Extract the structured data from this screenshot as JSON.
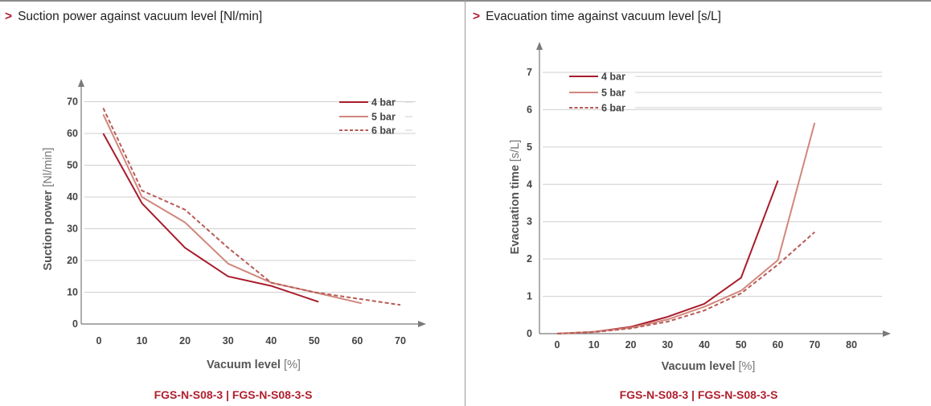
{
  "colors": {
    "series_4bar": "#a81c2c",
    "series_5bar": "#d1877d",
    "series_6bar": "#b85a55",
    "accent": "#b01f2e",
    "grid": "#cfcfcf",
    "axis": "#7a7a7a"
  },
  "chart_data": [
    {
      "type": "line",
      "arrow": ">",
      "title": "Suction power against vacuum level [Nl/min]",
      "xlabel": "Vacuum level",
      "xlabel_unit": "[%]",
      "ylabel": "Suction power",
      "ylabel_unit": "[Nl/min]",
      "x_ticks": [
        0,
        10,
        20,
        30,
        40,
        50,
        60,
        70
      ],
      "y_ticks": [
        0,
        10,
        20,
        30,
        40,
        50,
        60,
        70
      ],
      "xlim": [
        0,
        70
      ],
      "ylim": [
        0,
        70
      ],
      "grid": true,
      "legend_position": "top-right",
      "model": "FGS-N-S08-3 | FGS-N-S08-3-S",
      "series": [
        {
          "name": "4 bar",
          "style": "solid",
          "x": [
            1,
            10,
            20,
            30,
            40,
            51
          ],
          "y": [
            60,
            38,
            24,
            15,
            12,
            7
          ]
        },
        {
          "name": "5 bar",
          "style": "solid",
          "x": [
            1,
            10,
            20,
            30,
            40,
            50,
            61
          ],
          "y": [
            66,
            40,
            32,
            19,
            13,
            10,
            6.5
          ]
        },
        {
          "name": "6 bar",
          "style": "dashed",
          "x": [
            1,
            10,
            20,
            30,
            40,
            50,
            70
          ],
          "y": [
            68,
            42,
            36,
            24,
            13,
            10,
            6
          ]
        }
      ]
    },
    {
      "type": "line",
      "arrow": ">",
      "title": "Evacuation time against vacuum level [s/L]",
      "xlabel": "Vacuum level",
      "xlabel_unit": "[%]",
      "ylabel": "Evacuation time",
      "ylabel_unit": "[s/L]",
      "x_ticks": [
        0,
        10,
        20,
        30,
        40,
        50,
        60,
        70,
        80
      ],
      "y_ticks": [
        0,
        1,
        2,
        3,
        4,
        5,
        6,
        7
      ],
      "xlim": [
        0,
        80
      ],
      "ylim": [
        0,
        7
      ],
      "grid": true,
      "legend_position": "top-left",
      "model": "FGS-N-S08-3 | FGS-N-S08-3-S",
      "series": [
        {
          "name": "4 bar",
          "style": "solid",
          "x": [
            0,
            10,
            20,
            30,
            40,
            50,
            60
          ],
          "y": [
            0,
            0.05,
            0.18,
            0.45,
            0.8,
            1.5,
            4.1
          ]
        },
        {
          "name": "5 bar",
          "style": "solid",
          "x": [
            0,
            10,
            20,
            30,
            40,
            50,
            60,
            70
          ],
          "y": [
            0,
            0.05,
            0.16,
            0.38,
            0.72,
            1.15,
            1.97,
            5.65
          ]
        },
        {
          "name": "6 bar",
          "style": "dashed",
          "x": [
            0,
            10,
            20,
            30,
            40,
            50,
            60,
            70
          ],
          "y": [
            0,
            0.04,
            0.14,
            0.32,
            0.62,
            1.08,
            1.85,
            2.72
          ]
        }
      ]
    }
  ]
}
